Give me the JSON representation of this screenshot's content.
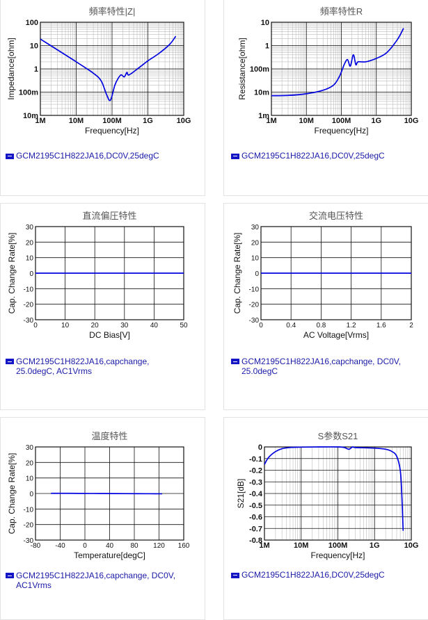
{
  "legend_color": "#1515c8",
  "plot_color": "#0000e0",
  "charts": [
    {
      "title": "頻率特性|Z|",
      "xlabel": "Frequency[Hz]",
      "ylabel": "Impedance[ohm]",
      "legend": "GCM2195C1H822JA16,DC0V,25degC",
      "chart_data": {
        "type": "line",
        "xscale": "log",
        "yscale": "log",
        "xlim": [
          1000000,
          10000000000
        ],
        "ylim": [
          0.01,
          100
        ],
        "xticks": [
          "1M",
          "10M",
          "100M",
          "1G",
          "10G"
        ],
        "yticks": [
          "100",
          "10",
          "1",
          "100m",
          "10m"
        ],
        "x": [
          1000000,
          3000000,
          10000000,
          30000000,
          50000000,
          70000000,
          90000000,
          120000000,
          150000000,
          180000000,
          220000000,
          260000000,
          300000000,
          600000000,
          1000000000,
          2000000000,
          4000000000,
          6000000000
        ],
        "y": [
          19,
          6.5,
          2,
          0.65,
          0.3,
          0.08,
          0.045,
          0.2,
          0.4,
          0.55,
          0.45,
          0.7,
          0.55,
          1.2,
          2.2,
          4.5,
          11,
          25
        ]
      }
    },
    {
      "title": "頻率特性R",
      "xlabel": "Frequency[Hz]",
      "ylabel": "Resistance[ohm]",
      "legend": "GCM2195C1H822JA16,DC0V,25degC",
      "chart_data": {
        "type": "line",
        "xscale": "log",
        "yscale": "log",
        "xlim": [
          1000000,
          10000000000
        ],
        "ylim": [
          0.001,
          10
        ],
        "xticks": [
          "1M",
          "10M",
          "100M",
          "1G",
          "10G"
        ],
        "yticks": [
          "10",
          "1",
          "100m",
          "10m",
          "1m"
        ],
        "x": [
          1000000,
          3000000,
          10000000,
          30000000,
          60000000,
          90000000,
          120000000,
          150000000,
          180000000,
          220000000,
          260000000,
          300000000,
          500000000,
          1000000000,
          2000000000,
          4000000000,
          6000000000
        ],
        "y": [
          0.007,
          0.0072,
          0.0085,
          0.012,
          0.02,
          0.05,
          0.15,
          0.25,
          0.13,
          0.4,
          0.15,
          0.2,
          0.2,
          0.28,
          0.5,
          1.8,
          5.5
        ]
      }
    },
    {
      "title": "直流偏圧特性",
      "xlabel": "DC Bias[V]",
      "ylabel": "Cap. Change Rate[%]",
      "legend": "GCM2195C1H822JA16,capchange, 25.0degC, AC1Vrms",
      "chart_data": {
        "type": "line",
        "xscale": "linear",
        "yscale": "linear",
        "xlim": [
          0,
          50
        ],
        "ylim": [
          -30,
          30
        ],
        "xticks": [
          "0",
          "10",
          "20",
          "30",
          "40",
          "50"
        ],
        "yticks": [
          "30",
          "20",
          "10",
          "0",
          "-10",
          "-20",
          "-30"
        ],
        "x": [
          0,
          10,
          20,
          30,
          40,
          50
        ],
        "y": [
          0,
          0,
          0,
          0,
          0,
          0
        ]
      }
    },
    {
      "title": "交流电压特性",
      "xlabel": "AC Voltage[Vrms]",
      "ylabel": "Cap. Change Rate[%]",
      "legend": "GCM2195C1H822JA16,capchange, DC0V, 25.0degC",
      "chart_data": {
        "type": "line",
        "xscale": "linear",
        "yscale": "linear",
        "xlim": [
          0,
          2
        ],
        "ylim": [
          -30,
          30
        ],
        "xticks": [
          "0",
          "0.4",
          "0.8",
          "1.2",
          "1.6",
          "2"
        ],
        "yticks": [
          "30",
          "20",
          "10",
          "0",
          "-10",
          "-20",
          "-30"
        ],
        "x": [
          0,
          0.4,
          0.8,
          1.2,
          1.6,
          2
        ],
        "y": [
          0,
          0,
          0,
          0,
          0,
          0
        ]
      }
    },
    {
      "title": "温度特性",
      "xlabel": "Temperature[degC]",
      "ylabel": "Cap. Change Rate[%]",
      "legend": "GCM2195C1H822JA16,capchange, DC0V, AC1Vrms",
      "chart_data": {
        "type": "line",
        "xscale": "linear",
        "yscale": "linear",
        "xlim": [
          -80,
          160
        ],
        "ylim": [
          -30,
          30
        ],
        "xticks": [
          "-80",
          "-40",
          "0",
          "40",
          "80",
          "120",
          "160"
        ],
        "yticks": [
          "30",
          "20",
          "10",
          "0",
          "-10",
          "-20",
          "-30"
        ],
        "x": [
          -55,
          -25,
          0,
          25,
          50,
          85,
          105,
          125
        ],
        "y": [
          0.1,
          0.1,
          0.05,
          0,
          -0.05,
          -0.1,
          -0.15,
          -0.2
        ]
      }
    },
    {
      "title": "S参数S21",
      "xlabel": "Frequency[Hz]",
      "ylabel": "S21[dB]",
      "legend": "GCM2195C1H822JA16,DC0V,25degC",
      "chart_data": {
        "type": "line",
        "xscale": "log",
        "yscale": "linear",
        "xlim": [
          1000000,
          10000000000
        ],
        "ylim": [
          -0.8,
          0
        ],
        "xticks": [
          "1M",
          "10M",
          "100M",
          "1G",
          "10G"
        ],
        "yticks": [
          "0",
          "-0.1",
          "-0.2",
          "-0.3",
          "-0.4",
          "-0.5",
          "-0.6",
          "-0.7",
          "-0.8"
        ],
        "x": [
          1000000,
          1300000,
          2000000,
          3000000,
          5000000,
          10000000,
          30000000,
          100000000,
          150000000,
          200000000,
          250000000,
          300000000,
          1000000000,
          2000000000,
          3000000000,
          4000000000,
          5000000000,
          5500000000,
          6000000000
        ],
        "y": [
          -0.15,
          -0.09,
          -0.04,
          -0.015,
          -0.005,
          -0.002,
          0,
          0,
          -0.005,
          -0.02,
          0,
          -0.005,
          -0.01,
          -0.02,
          -0.04,
          -0.08,
          -0.2,
          -0.4,
          -0.72
        ]
      }
    }
  ]
}
